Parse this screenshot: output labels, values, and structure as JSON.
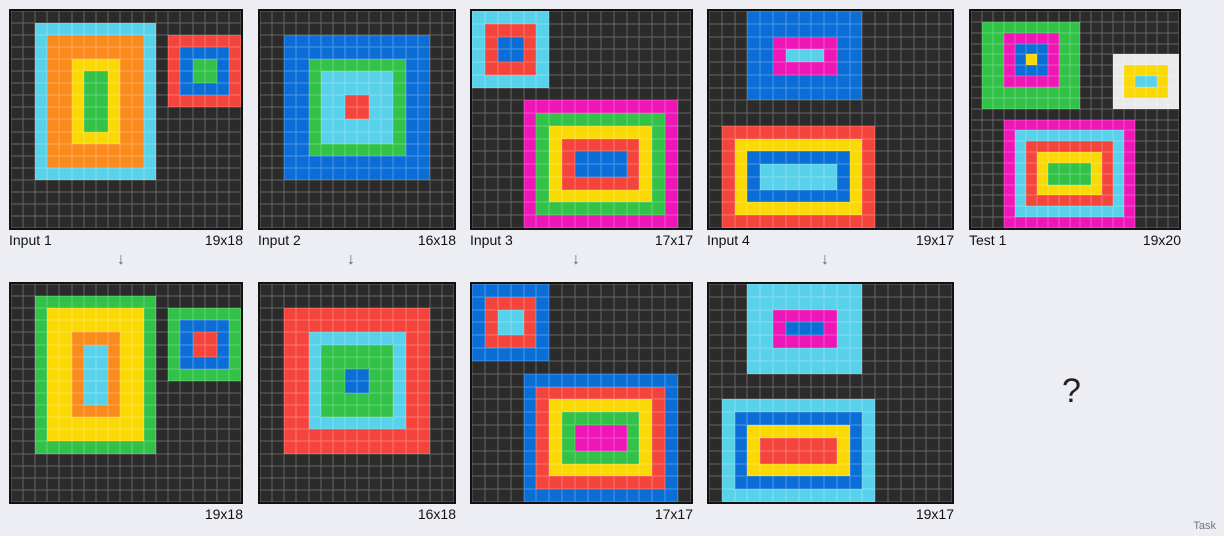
{
  "palette": {
    "K": "#2b2b2b",
    "B": "#0a6ed6",
    "R": "#f5443c",
    "G": "#32c248",
    "Y": "#fbd905",
    "C": "#58d2ea",
    "O": "#fb8a1c",
    "M": "#ee16b7",
    "W": "#eaeaea"
  },
  "examples": [
    {
      "input": {
        "label": "Input 1",
        "dims": "19x18",
        "w": 19,
        "h": 18,
        "rects": [
          {
            "r": 1,
            "c": 2,
            "h": 13,
            "w": 10,
            "color": "C"
          },
          {
            "r": 2,
            "c": 3,
            "h": 11,
            "w": 8,
            "color": "O"
          },
          {
            "r": 4,
            "c": 5,
            "h": 7,
            "w": 4,
            "color": "Y"
          },
          {
            "r": 5,
            "c": 6,
            "h": 5,
            "w": 2,
            "color": "G"
          },
          {
            "r": 2,
            "c": 13,
            "h": 6,
            "w": 6,
            "color": "R"
          },
          {
            "r": 3,
            "c": 14,
            "h": 4,
            "w": 4,
            "color": "B"
          },
          {
            "r": 4,
            "c": 15,
            "h": 2,
            "w": 2,
            "color": "G"
          }
        ]
      },
      "arrow": "↓",
      "output": {
        "dims": "19x18",
        "w": 19,
        "h": 18,
        "rects": [
          {
            "r": 1,
            "c": 2,
            "h": 13,
            "w": 10,
            "color": "G"
          },
          {
            "r": 2,
            "c": 3,
            "h": 11,
            "w": 8,
            "color": "Y"
          },
          {
            "r": 4,
            "c": 5,
            "h": 7,
            "w": 4,
            "color": "O"
          },
          {
            "r": 5,
            "c": 6,
            "h": 5,
            "w": 2,
            "color": "C"
          },
          {
            "r": 2,
            "c": 13,
            "h": 6,
            "w": 6,
            "color": "G"
          },
          {
            "r": 3,
            "c": 14,
            "h": 4,
            "w": 4,
            "color": "B"
          },
          {
            "r": 4,
            "c": 15,
            "h": 2,
            "w": 2,
            "color": "R"
          }
        ]
      }
    },
    {
      "input": {
        "label": "Input 2",
        "dims": "16x18",
        "w": 16,
        "h": 18,
        "rects": [
          {
            "r": 2,
            "c": 2,
            "h": 12,
            "w": 12,
            "color": "B"
          },
          {
            "r": 4,
            "c": 4,
            "h": 8,
            "w": 8,
            "color": "G"
          },
          {
            "r": 5,
            "c": 5,
            "h": 6,
            "w": 6,
            "color": "C"
          },
          {
            "r": 7,
            "c": 7,
            "h": 2,
            "w": 2,
            "color": "R"
          }
        ]
      },
      "arrow": "↓",
      "output": {
        "dims": "16x18",
        "w": 16,
        "h": 18,
        "rects": [
          {
            "r": 2,
            "c": 2,
            "h": 12,
            "w": 12,
            "color": "R"
          },
          {
            "r": 4,
            "c": 4,
            "h": 8,
            "w": 8,
            "color": "C"
          },
          {
            "r": 5,
            "c": 5,
            "h": 6,
            "w": 6,
            "color": "G"
          },
          {
            "r": 7,
            "c": 7,
            "h": 2,
            "w": 2,
            "color": "B"
          }
        ]
      }
    },
    {
      "input": {
        "label": "Input 3",
        "dims": "17x17",
        "w": 17,
        "h": 17,
        "rects": [
          {
            "r": 0,
            "c": 0,
            "h": 6,
            "w": 6,
            "color": "C"
          },
          {
            "r": 1,
            "c": 1,
            "h": 4,
            "w": 4,
            "color": "R"
          },
          {
            "r": 2,
            "c": 2,
            "h": 2,
            "w": 2,
            "color": "B"
          },
          {
            "r": 7,
            "c": 4,
            "h": 10,
            "w": 12,
            "color": "M"
          },
          {
            "r": 8,
            "c": 5,
            "h": 8,
            "w": 10,
            "color": "G"
          },
          {
            "r": 9,
            "c": 6,
            "h": 6,
            "w": 8,
            "color": "Y"
          },
          {
            "r": 10,
            "c": 7,
            "h": 4,
            "w": 6,
            "color": "R"
          },
          {
            "r": 11,
            "c": 8,
            "h": 2,
            "w": 4,
            "color": "B"
          }
        ]
      },
      "arrow": "↓",
      "output": {
        "dims": "17x17",
        "w": 17,
        "h": 17,
        "rects": [
          {
            "r": 0,
            "c": 0,
            "h": 6,
            "w": 6,
            "color": "B"
          },
          {
            "r": 1,
            "c": 1,
            "h": 4,
            "w": 4,
            "color": "R"
          },
          {
            "r": 2,
            "c": 2,
            "h": 2,
            "w": 2,
            "color": "C"
          },
          {
            "r": 7,
            "c": 4,
            "h": 10,
            "w": 12,
            "color": "B"
          },
          {
            "r": 8,
            "c": 5,
            "h": 8,
            "w": 10,
            "color": "R"
          },
          {
            "r": 9,
            "c": 6,
            "h": 6,
            "w": 8,
            "color": "Y"
          },
          {
            "r": 10,
            "c": 7,
            "h": 4,
            "w": 6,
            "color": "G"
          },
          {
            "r": 11,
            "c": 8,
            "h": 2,
            "w": 4,
            "color": "M"
          }
        ]
      }
    },
    {
      "input": {
        "label": "Input 4",
        "dims": "19x17",
        "w": 19,
        "h": 17,
        "rects": [
          {
            "r": 0,
            "c": 3,
            "h": 7,
            "w": 9,
            "color": "B"
          },
          {
            "r": 2,
            "c": 5,
            "h": 3,
            "w": 5,
            "color": "M"
          },
          {
            "r": 3,
            "c": 6,
            "h": 1,
            "w": 3,
            "color": "C"
          },
          {
            "r": 9,
            "c": 1,
            "h": 8,
            "w": 12,
            "color": "R"
          },
          {
            "r": 10,
            "c": 2,
            "h": 6,
            "w": 10,
            "color": "Y"
          },
          {
            "r": 11,
            "c": 3,
            "h": 4,
            "w": 8,
            "color": "B"
          },
          {
            "r": 12,
            "c": 4,
            "h": 2,
            "w": 6,
            "color": "C"
          }
        ]
      },
      "arrow": "↓",
      "output": {
        "dims": "19x17",
        "w": 19,
        "h": 17,
        "rects": [
          {
            "r": 0,
            "c": 3,
            "h": 7,
            "w": 9,
            "color": "C"
          },
          {
            "r": 2,
            "c": 5,
            "h": 3,
            "w": 5,
            "color": "M"
          },
          {
            "r": 3,
            "c": 6,
            "h": 1,
            "w": 3,
            "color": "B"
          },
          {
            "r": 9,
            "c": 1,
            "h": 8,
            "w": 12,
            "color": "C"
          },
          {
            "r": 10,
            "c": 2,
            "h": 6,
            "w": 10,
            "color": "B"
          },
          {
            "r": 11,
            "c": 3,
            "h": 4,
            "w": 8,
            "color": "Y"
          },
          {
            "r": 12,
            "c": 4,
            "h": 2,
            "w": 6,
            "color": "R"
          }
        ]
      }
    }
  ],
  "test": {
    "label": "Test 1",
    "dims": "19x20",
    "w": 19,
    "h": 20,
    "rects": [
      {
        "r": 1,
        "c": 1,
        "h": 8,
        "w": 9,
        "color": "G"
      },
      {
        "r": 2,
        "c": 3,
        "h": 5,
        "w": 5,
        "color": "M"
      },
      {
        "r": 3,
        "c": 4,
        "h": 3,
        "w": 3,
        "color": "B"
      },
      {
        "r": 4,
        "c": 5,
        "h": 1,
        "w": 1,
        "color": "Y"
      },
      {
        "r": 4,
        "c": 13,
        "h": 5,
        "w": 6,
        "color": "W"
      },
      {
        "r": 5,
        "c": 14,
        "h": 3,
        "w": 4,
        "color": "Y"
      },
      {
        "r": 6,
        "c": 15,
        "h": 1,
        "w": 2,
        "color": "C"
      },
      {
        "r": 10,
        "c": 3,
        "h": 10,
        "w": 12,
        "color": "M"
      },
      {
        "r": 11,
        "c": 4,
        "h": 8,
        "w": 10,
        "color": "C"
      },
      {
        "r": 12,
        "c": 5,
        "h": 6,
        "w": 8,
        "color": "R"
      },
      {
        "r": 13,
        "c": 6,
        "h": 4,
        "w": 6,
        "color": "Y"
      },
      {
        "r": 14,
        "c": 7,
        "h": 2,
        "w": 4,
        "color": "G"
      }
    ]
  },
  "question_mark": "?",
  "footer": "Task"
}
